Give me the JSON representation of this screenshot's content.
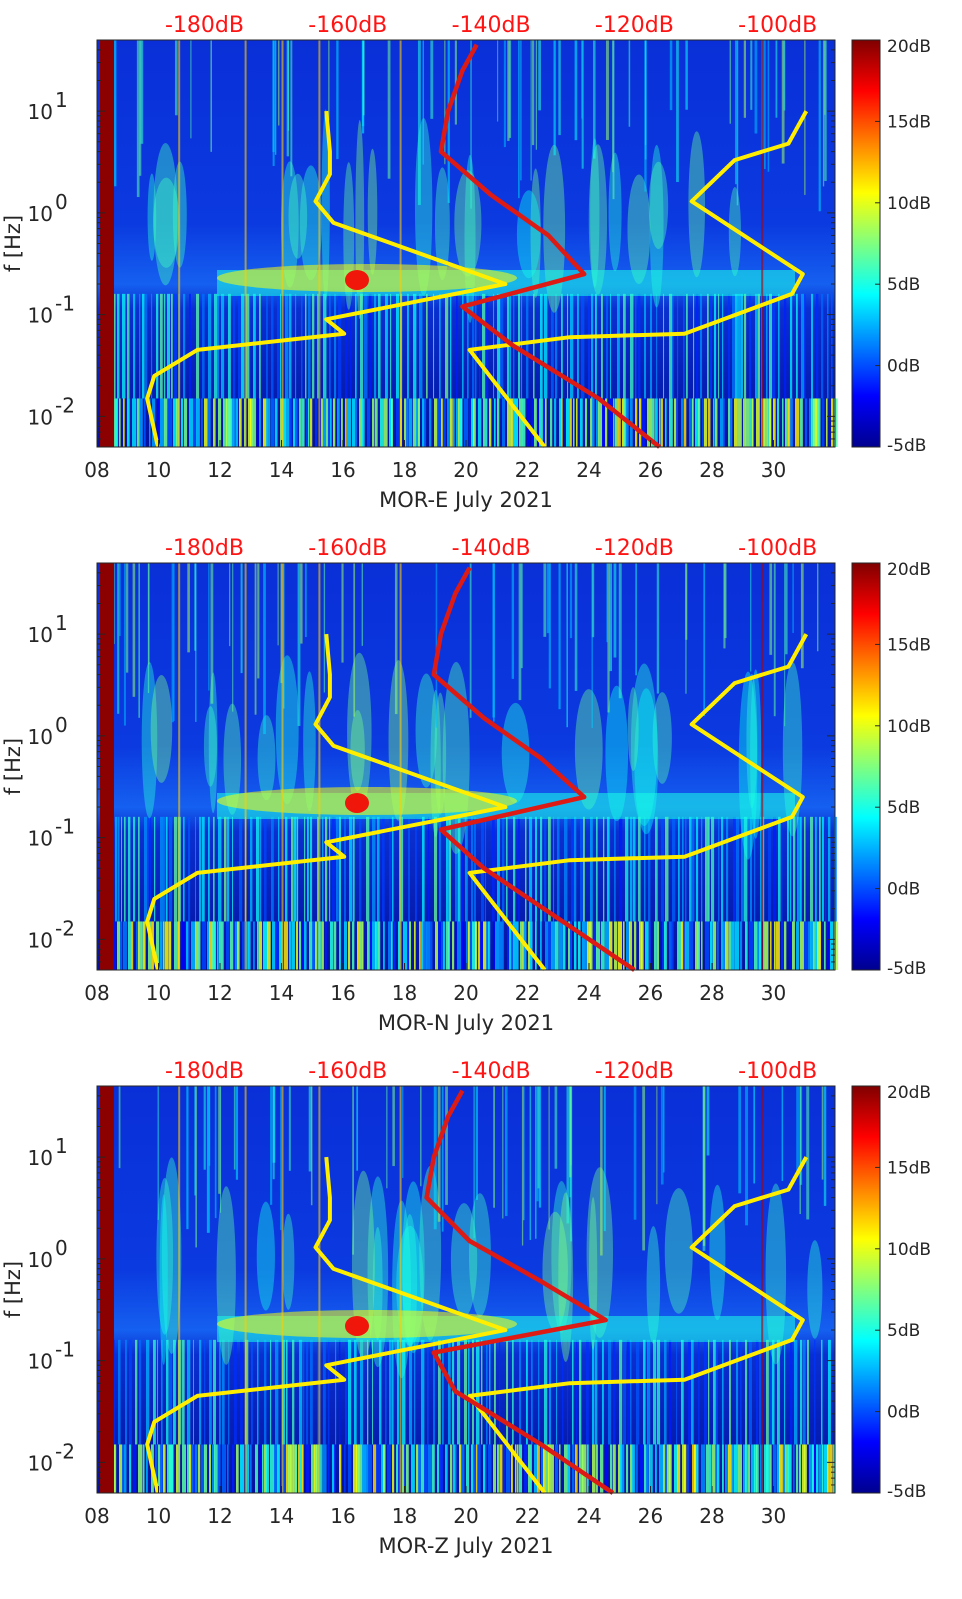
{
  "figure": {
    "description_note": "Three stacked spectrogram panels for seismic station MOR components E, N, Z, July 2021",
    "colors": {
      "top_axis_text": "#ff1414",
      "yellow_curve": "#ffee00",
      "red_curve": "#dd1a14",
      "axis_text": "#262626"
    }
  },
  "chart_data": [
    {
      "type": "heatmap",
      "title": "",
      "xlabel": "MOR-E July 2021",
      "ylabel": "f [Hz]",
      "x_tick_labels": [
        "08",
        "10",
        "12",
        "14",
        "16",
        "18",
        "20",
        "22",
        "24",
        "26",
        "28",
        "30"
      ],
      "x_tick_values": [
        8,
        10,
        12,
        14,
        16,
        18,
        20,
        22,
        24,
        26,
        28,
        30
      ],
      "xlim": [
        8,
        32
      ],
      "y_scale": "log",
      "ylim": [
        0.005,
        50
      ],
      "y_tick_values": [
        0.01,
        0.1,
        1,
        10
      ],
      "y_tick_labels": [
        {
          "base": "10",
          "exp": "-2"
        },
        {
          "base": "10",
          "exp": "-1"
        },
        {
          "base": "10",
          "exp": "0"
        },
        {
          "base": "10",
          "exp": "1"
        }
      ],
      "top_axis_labels": [
        "-180dB",
        "-160dB",
        "-140dB",
        "-120dB",
        "-100dB"
      ],
      "top_axis_values": [
        -180,
        -160,
        -140,
        -120,
        -100
      ],
      "colorbar": {
        "labels": [
          "20dB",
          "15dB",
          "10dB",
          "5dB",
          "0dB",
          "-5dB"
        ],
        "values": [
          20,
          15,
          10,
          5,
          0,
          -5
        ],
        "range": [
          -5,
          20
        ],
        "colormap": "jet"
      },
      "series": [
        {
          "name": "yellow reference curve (dB)",
          "points": [
            [
              -186.5,
              0.005
            ],
            [
              -188,
              0.015
            ],
            [
              -187,
              0.025
            ],
            [
              -181,
              0.045
            ],
            [
              -160.5,
              0.065
            ],
            [
              -163,
              0.09
            ],
            [
              -138,
              0.2
            ],
            [
              -162,
              0.8
            ],
            [
              -164.5,
              1.3
            ],
            [
              -162.5,
              2.4
            ],
            [
              -162.5,
              4
            ],
            [
              -163,
              10
            ]
          ]
        },
        {
          "name": "yellow reference curve (dB)",
          "points": [
            [
              -132.5,
              0.005
            ],
            [
              -143,
              0.045
            ],
            [
              -129,
              0.06
            ],
            [
              -113,
              0.065
            ],
            [
              -98,
              0.16
            ],
            [
              -96.5,
              0.25
            ],
            [
              -112,
              1.3
            ],
            [
              -106,
              3.3
            ],
            [
              -98.5,
              4.8
            ],
            [
              -96,
              10
            ]
          ]
        },
        {
          "name": "red PSD curve (dB)",
          "points": [
            [
              -116.5,
              0.005
            ],
            [
              -125,
              0.015
            ],
            [
              -137,
              0.05
            ],
            [
              -144,
              0.12
            ],
            [
              -127,
              0.25
            ],
            [
              -132,
              0.6
            ],
            [
              -140,
              1.5
            ],
            [
              -147,
              4
            ],
            [
              -146,
              10
            ],
            [
              -144,
              25
            ],
            [
              -142,
              45
            ]
          ]
        }
      ]
    },
    {
      "type": "heatmap",
      "title": "",
      "xlabel": "MOR-N July 2021",
      "ylabel": "f [Hz]",
      "x_tick_labels": [
        "08",
        "10",
        "12",
        "14",
        "16",
        "18",
        "20",
        "22",
        "24",
        "26",
        "28",
        "30"
      ],
      "x_tick_values": [
        8,
        10,
        12,
        14,
        16,
        18,
        20,
        22,
        24,
        26,
        28,
        30
      ],
      "xlim": [
        8,
        32
      ],
      "y_scale": "log",
      "ylim": [
        0.005,
        50
      ],
      "y_tick_values": [
        0.01,
        0.1,
        1,
        10
      ],
      "y_tick_labels": [
        {
          "base": "10",
          "exp": "-2"
        },
        {
          "base": "10",
          "exp": "-1"
        },
        {
          "base": "10",
          "exp": "0"
        },
        {
          "base": "10",
          "exp": "1"
        }
      ],
      "top_axis_labels": [
        "-180dB",
        "-160dB",
        "-140dB",
        "-120dB",
        "-100dB"
      ],
      "top_axis_values": [
        -180,
        -160,
        -140,
        -120,
        -100
      ],
      "colorbar": {
        "labels": [
          "20dB",
          "15dB",
          "10dB",
          "5dB",
          "0dB",
          "-5dB"
        ],
        "values": [
          20,
          15,
          10,
          5,
          0,
          -5
        ],
        "range": [
          -5,
          20
        ],
        "colormap": "jet"
      },
      "series": [
        {
          "name": "yellow reference curve (dB)",
          "points": [
            [
              -186.5,
              0.005
            ],
            [
              -188,
              0.015
            ],
            [
              -187,
              0.025
            ],
            [
              -181,
              0.045
            ],
            [
              -160.5,
              0.065
            ],
            [
              -163,
              0.09
            ],
            [
              -138,
              0.2
            ],
            [
              -162,
              0.8
            ],
            [
              -164.5,
              1.3
            ],
            [
              -162.5,
              2.4
            ],
            [
              -162.5,
              4
            ],
            [
              -163,
              10
            ]
          ]
        },
        {
          "name": "yellow reference curve (dB)",
          "points": [
            [
              -132.5,
              0.005
            ],
            [
              -143,
              0.045
            ],
            [
              -129,
              0.06
            ],
            [
              -113,
              0.065
            ],
            [
              -98,
              0.16
            ],
            [
              -96.5,
              0.25
            ],
            [
              -112,
              1.3
            ],
            [
              -106,
              3.3
            ],
            [
              -98.5,
              4.8
            ],
            [
              -96,
              10
            ]
          ]
        },
        {
          "name": "red PSD curve (dB)",
          "points": [
            [
              -120,
              0.005
            ],
            [
              -130,
              0.015
            ],
            [
              -141,
              0.05
            ],
            [
              -147,
              0.12
            ],
            [
              -127,
              0.25
            ],
            [
              -133,
              0.6
            ],
            [
              -141,
              1.5
            ],
            [
              -148,
              4
            ],
            [
              -147,
              10
            ],
            [
              -145,
              25
            ],
            [
              -143,
              45
            ]
          ]
        }
      ]
    },
    {
      "type": "heatmap",
      "title": "",
      "xlabel": "MOR-Z July 2021",
      "ylabel": "f [Hz]",
      "x_tick_labels": [
        "08",
        "10",
        "12",
        "14",
        "16",
        "18",
        "20",
        "22",
        "24",
        "26",
        "28",
        "30"
      ],
      "x_tick_values": [
        8,
        10,
        12,
        14,
        16,
        18,
        20,
        22,
        24,
        26,
        28,
        30
      ],
      "xlim": [
        8,
        32
      ],
      "y_scale": "log",
      "ylim": [
        0.005,
        50
      ],
      "y_tick_values": [
        0.01,
        0.1,
        1,
        10
      ],
      "y_tick_labels": [
        {
          "base": "10",
          "exp": "-2"
        },
        {
          "base": "10",
          "exp": "-1"
        },
        {
          "base": "10",
          "exp": "0"
        },
        {
          "base": "10",
          "exp": "1"
        }
      ],
      "top_axis_labels": [
        "-180dB",
        "-160dB",
        "-140dB",
        "-120dB",
        "-100dB"
      ],
      "top_axis_values": [
        -180,
        -160,
        -140,
        -120,
        -100
      ],
      "colorbar": {
        "labels": [
          "20dB",
          "15dB",
          "10dB",
          "5dB",
          "0dB",
          "-5dB"
        ],
        "values": [
          20,
          15,
          10,
          5,
          0,
          -5
        ],
        "range": [
          -5,
          20
        ],
        "colormap": "jet"
      },
      "series": [
        {
          "name": "yellow reference curve (dB)",
          "points": [
            [
              -186.5,
              0.005
            ],
            [
              -188,
              0.015
            ],
            [
              -187,
              0.025
            ],
            [
              -181,
              0.045
            ],
            [
              -160.5,
              0.065
            ],
            [
              -163,
              0.09
            ],
            [
              -138,
              0.2
            ],
            [
              -162,
              0.8
            ],
            [
              -164.5,
              1.3
            ],
            [
              -162.5,
              2.4
            ],
            [
              -162.5,
              4
            ],
            [
              -163,
              10
            ]
          ]
        },
        {
          "name": "yellow reference curve (dB)",
          "points": [
            [
              -132.5,
              0.005
            ],
            [
              -143,
              0.045
            ],
            [
              -129,
              0.06
            ],
            [
              -113,
              0.065
            ],
            [
              -98,
              0.16
            ],
            [
              -96.5,
              0.25
            ],
            [
              -112,
              1.3
            ],
            [
              -106,
              3.3
            ],
            [
              -98.5,
              4.8
            ],
            [
              -96,
              10
            ]
          ]
        },
        {
          "name": "red PSD curve (dB)",
          "points": [
            [
              -123,
              0.005
            ],
            [
              -133,
              0.015
            ],
            [
              -145,
              0.05
            ],
            [
              -148,
              0.12
            ],
            [
              -124,
              0.25
            ],
            [
              -133,
              0.6
            ],
            [
              -143,
              1.5
            ],
            [
              -149,
              4
            ],
            [
              -148,
              10
            ],
            [
              -146,
              25
            ],
            [
              -144,
              45
            ]
          ]
        }
      ]
    }
  ]
}
